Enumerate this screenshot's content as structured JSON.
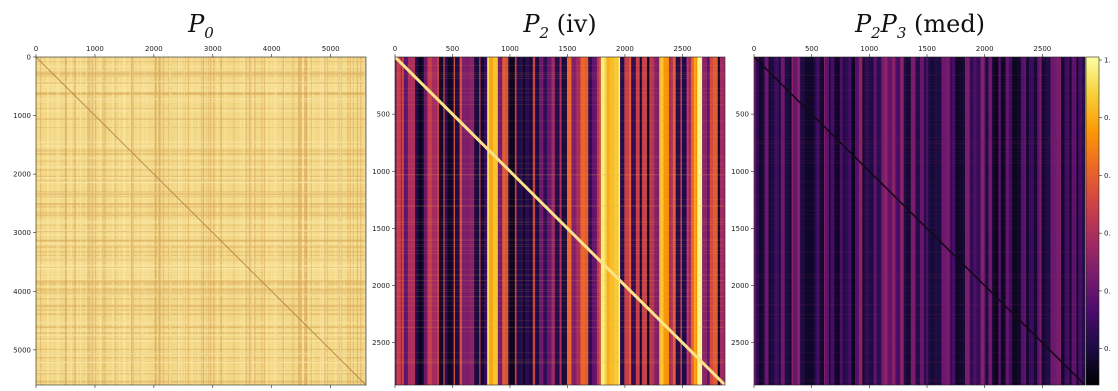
{
  "chart_data": [
    {
      "type": "heatmap",
      "title": {
        "main": "P",
        "sub": "0",
        "suffix": ""
      },
      "xlim": [
        0,
        5600
      ],
      "ylim": [
        0,
        5600
      ],
      "xticks": [
        0,
        1000,
        2000,
        3000,
        4000,
        5000
      ],
      "yticks": [
        0,
        1000,
        2000,
        3000,
        4000,
        5000
      ],
      "colormap": "inferno",
      "pattern": "dense-yellow",
      "diagonal": "darker"
    },
    {
      "type": "heatmap",
      "title": {
        "main": "P",
        "sub": "2",
        "suffix": " (iv)"
      },
      "xlim": [
        0,
        2870
      ],
      "ylim": [
        0,
        2870
      ],
      "xticks": [
        0,
        500,
        1000,
        1500,
        2000,
        2500
      ],
      "yticks": [
        500,
        1000,
        1500,
        2000,
        2500
      ],
      "colormap": "inferno",
      "pattern": "striped",
      "diagonal": "bright"
    },
    {
      "type": "heatmap",
      "title": {
        "main": "P",
        "sub": "2",
        "main2": "P",
        "sub2": "3",
        "suffix": " (med)"
      },
      "xlim": [
        0,
        2870
      ],
      "ylim": [
        0,
        2870
      ],
      "xticks": [
        0,
        500,
        1000,
        1500,
        2000,
        2500
      ],
      "yticks": [
        500,
        1000,
        1500,
        2000,
        2500
      ],
      "colormap": "inferno",
      "pattern": "dark",
      "diagonal": "dark"
    }
  ],
  "colorbar": {
    "labels": [
      "1.",
      "0.",
      "0.",
      "0.",
      "0.",
      "0."
    ],
    "colors": [
      "#fcffa4",
      "#f7d13d",
      "#fb9b06",
      "#ed6925",
      "#cf4446",
      "#a52c60",
      "#781c6d",
      "#4a0c6b",
      "#1b0c41",
      "#000004"
    ]
  }
}
